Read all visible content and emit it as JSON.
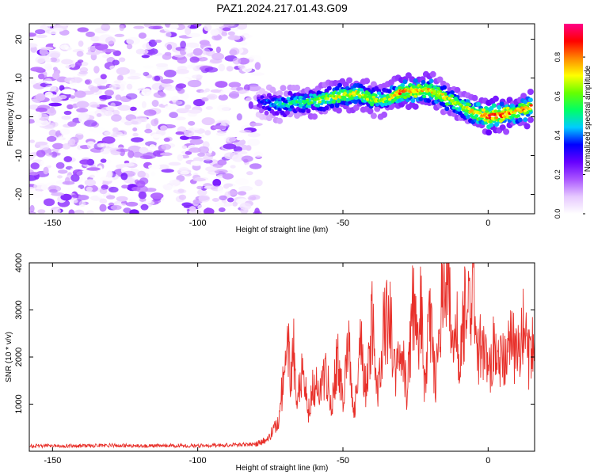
{
  "figure": {
    "title": "PAZ1.2024.217.01.43.G09"
  },
  "chart_data": [
    {
      "type": "heatmap",
      "title": "PAZ1.2024.217.01.43.G09",
      "xlabel": "Height of straight line (km)",
      "ylabel": "Frequency (Hz)",
      "xlim": [
        -158,
        16
      ],
      "ylim": [
        -25,
        24
      ],
      "xticks": [
        -150,
        -100,
        -50,
        0
      ],
      "xtick_labels": [
        "-150",
        "-100",
        "-50",
        "0"
      ],
      "yticks": [
        -20,
        -10,
        0,
        10,
        20
      ],
      "ytick_labels": [
        "-20",
        "-10",
        "0",
        "10",
        "20"
      ],
      "noise_region_x": [
        -158,
        -79
      ],
      "noise_amplitude_range": [
        0.0,
        0.25
      ],
      "signal_ridge": {
        "x": [
          -79,
          -75,
          -70,
          -65,
          -60,
          -55,
          -50,
          -45,
          -40,
          -35,
          -30,
          -25,
          -20,
          -15,
          -10,
          -5,
          0,
          5,
          10,
          15
        ],
        "frequency": [
          4,
          3.5,
          3,
          4,
          4,
          5,
          5.5,
          6,
          4.5,
          4.5,
          6.5,
          6.5,
          7,
          5,
          3,
          1,
          0,
          0.5,
          1.5,
          2.5
        ],
        "peak_amplitude": [
          0.35,
          0.45,
          0.55,
          0.6,
          0.65,
          0.7,
          0.75,
          0.75,
          0.7,
          0.7,
          0.9,
          0.85,
          0.8,
          0.75,
          0.7,
          0.8,
          0.95,
          0.9,
          0.85,
          0.9
        ]
      },
      "colorbar": {
        "label": "Normalized spectral amplitude",
        "range": [
          0.0,
          0.97
        ],
        "ticks": [
          0.0,
          0.2,
          0.4,
          0.6,
          0.8
        ],
        "tick_labels": [
          "0.0",
          "0.2",
          "0.4",
          "0.6",
          "0.8"
        ],
        "colors": [
          "#ffffff",
          "#e6c8ff",
          "#aa55ff",
          "#6600ff",
          "#0000ff",
          "#00ccff",
          "#00ff66",
          "#66ff00",
          "#ffff00",
          "#ff8800",
          "#ff0000",
          "#ff0088"
        ]
      }
    },
    {
      "type": "line",
      "xlabel": "Height of straight line (km)",
      "ylabel": "SNR (10 * v/v)",
      "xlim": [
        -158,
        16
      ],
      "ylim": [
        0,
        4000
      ],
      "xticks": [
        -150,
        -100,
        -50,
        0
      ],
      "xtick_labels": [
        "-150",
        "-100",
        "-50",
        "0"
      ],
      "yticks": [
        1000,
        2000,
        3000,
        4000
      ],
      "ytick_labels": [
        "1000",
        "2000",
        "3000",
        "4000"
      ],
      "color": "#e8302a",
      "series": [
        {
          "x": [
            -158,
            -150,
            -140,
            -130,
            -120,
            -110,
            -100,
            -90,
            -80,
            -76,
            -74,
            -72,
            -70,
            -69,
            -68,
            -67,
            -66,
            -64,
            -62,
            -60,
            -58,
            -56,
            -54,
            -52,
            -50,
            -48,
            -46,
            -44,
            -42,
            -40,
            -38,
            -36,
            -34,
            -33,
            -32,
            -30,
            -28,
            -26,
            -24,
            -23,
            -22,
            -20,
            -18,
            -16,
            -15,
            -14,
            -12,
            -11,
            -10,
            -8,
            -6,
            -5,
            -4,
            -2,
            0,
            2,
            4,
            6,
            8,
            10,
            12,
            14,
            16
          ],
          "y": [
            110,
            120,
            115,
            125,
            110,
            120,
            115,
            130,
            150,
            250,
            450,
            700,
            1900,
            2400,
            1500,
            2200,
            1200,
            1700,
            900,
            1500,
            1200,
            1800,
            1000,
            2000,
            1200,
            2100,
            800,
            2300,
            1300,
            2800,
            1100,
            2600,
            2800,
            2400,
            1500,
            2300,
            1200,
            3100,
            2000,
            3300,
            1500,
            2800,
            1400,
            3300,
            3700,
            3900,
            2000,
            3000,
            1500,
            3100,
            2800,
            4000,
            1900,
            2400,
            1500,
            2200,
            1800,
            2100,
            2300,
            2000,
            2600,
            1900,
            2300
          ]
        }
      ]
    }
  ]
}
